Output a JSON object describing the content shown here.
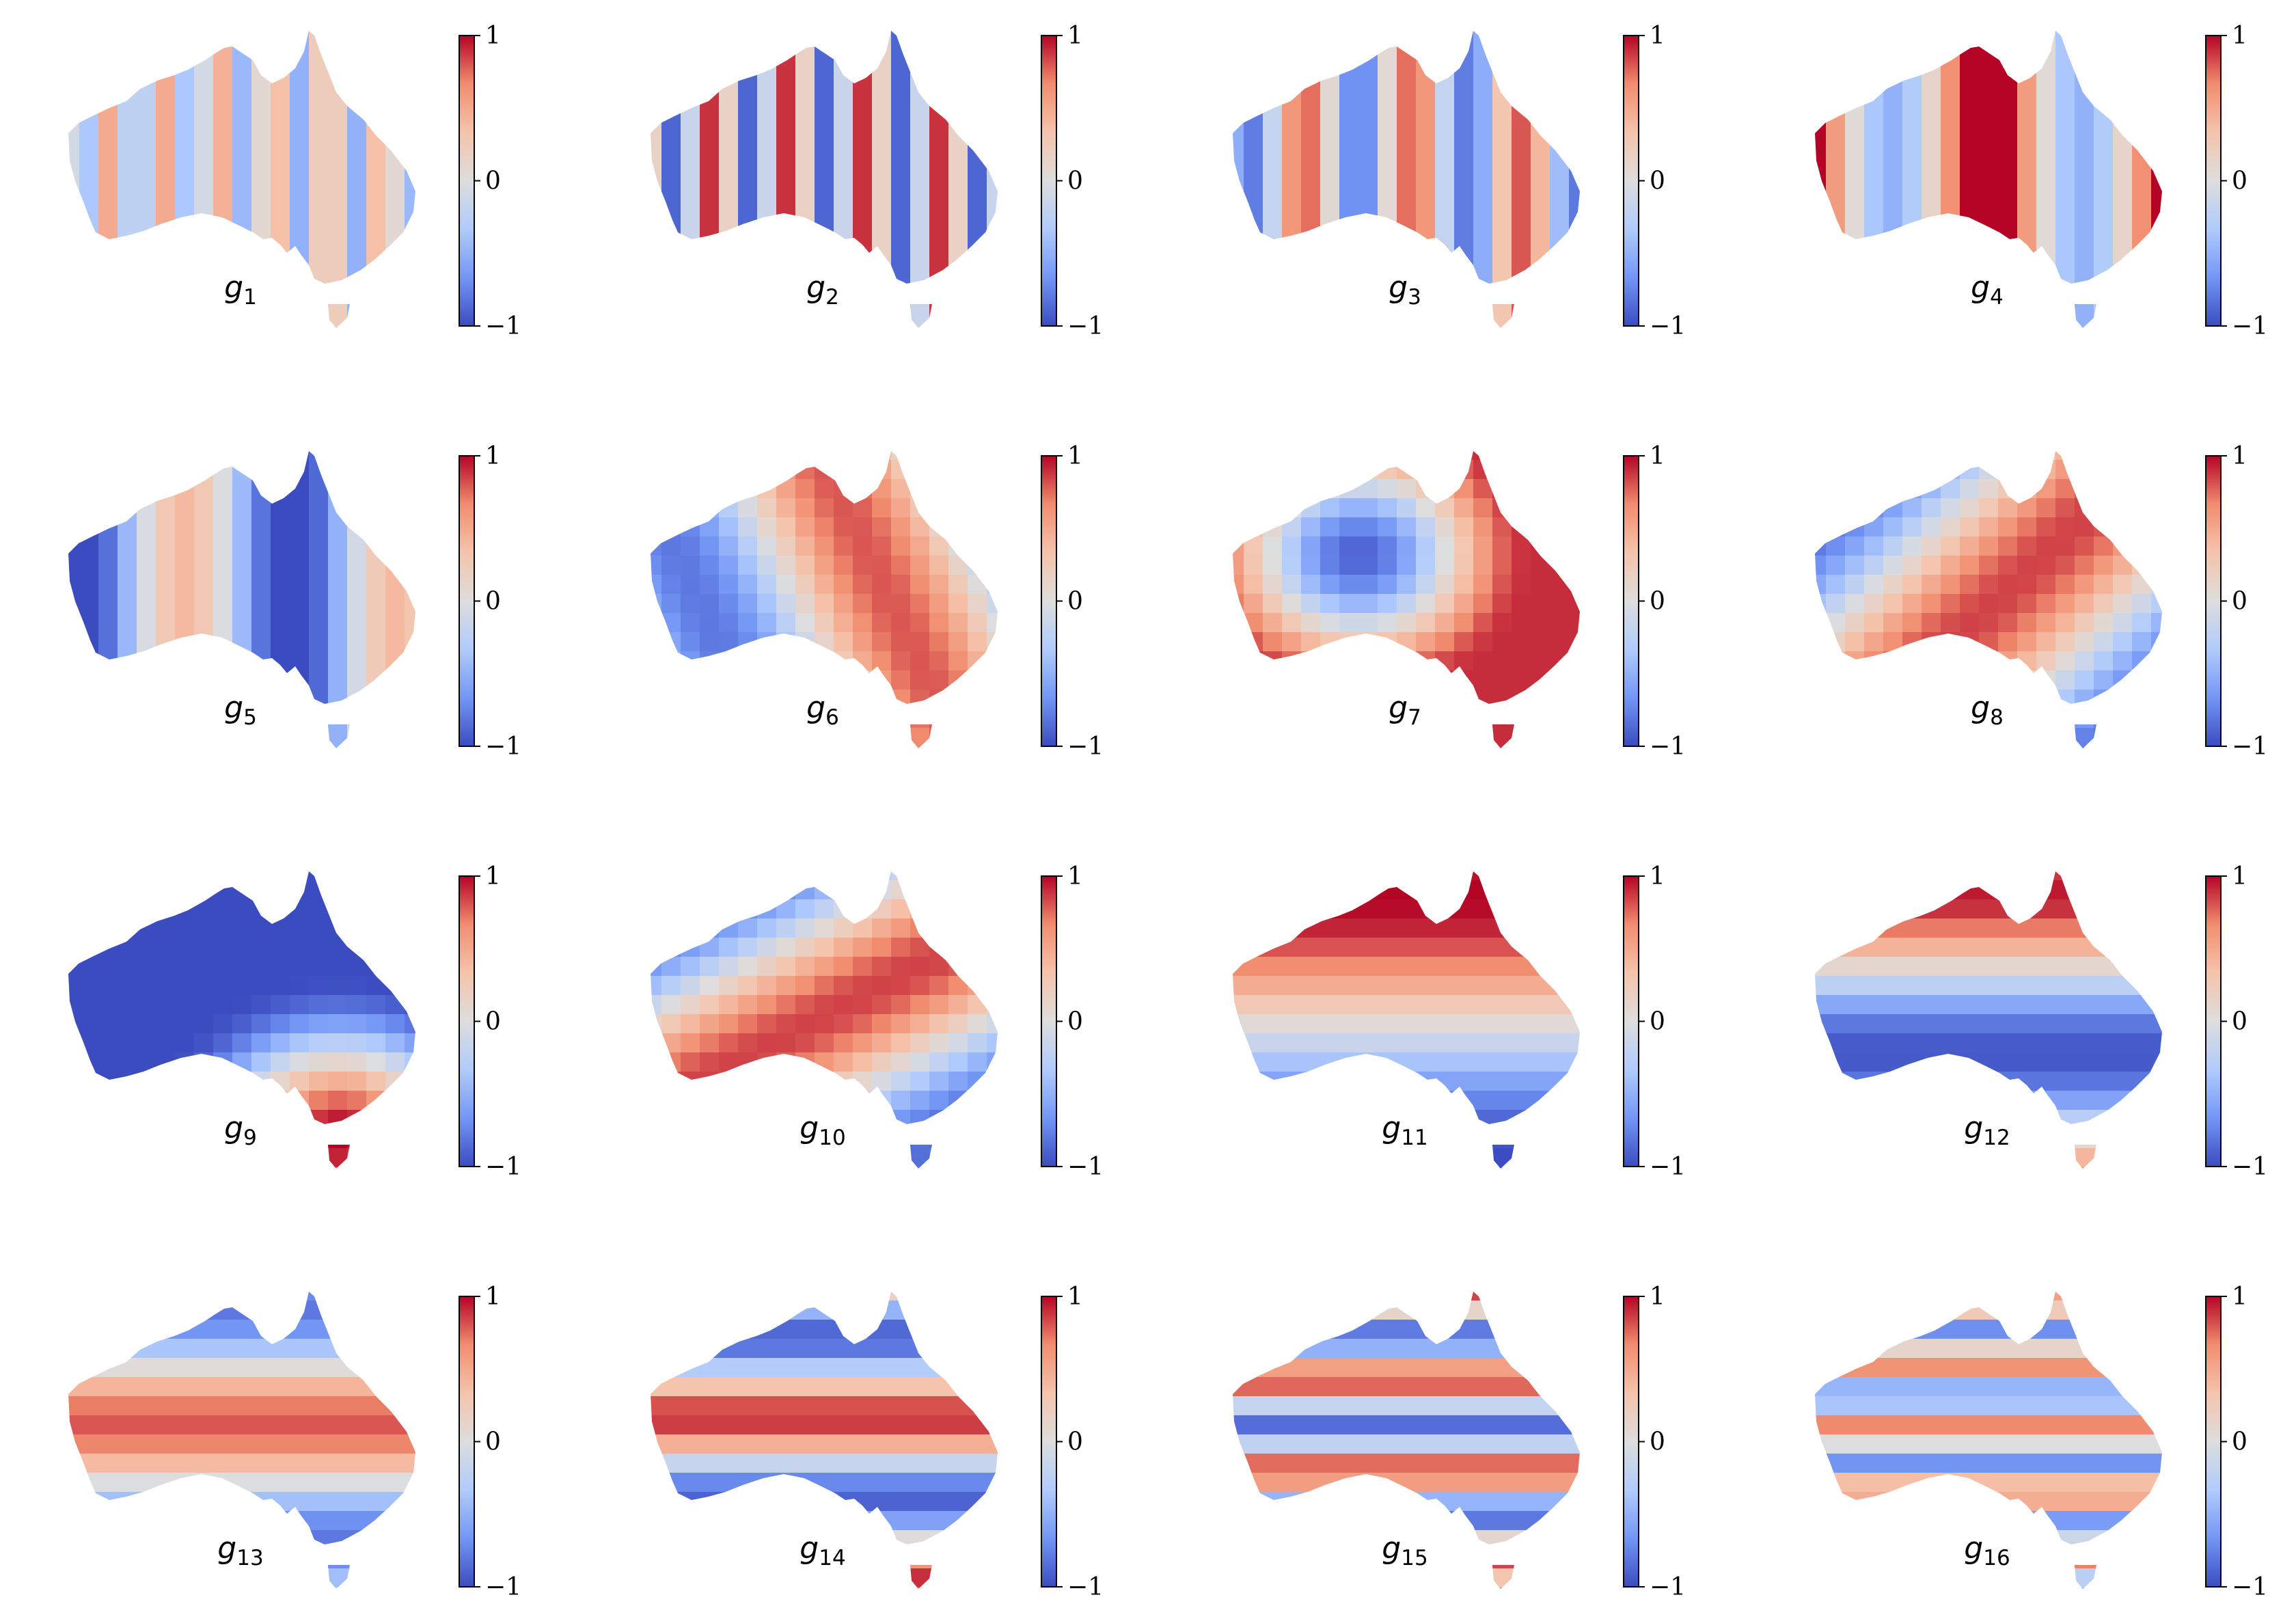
{
  "figure": {
    "colormap": "coolwarm",
    "colormap_stops": [
      "#3b4cc0",
      "#7396f5",
      "#b0cbfc",
      "#dddddd",
      "#f5c4ac",
      "#f18d6f",
      "#b40426"
    ],
    "colorbar_ticks": [
      "1",
      "0",
      "−1"
    ],
    "colorbar_range": [
      -1,
      1
    ]
  },
  "chart_data": [
    {
      "type": "heatmap",
      "label": "g",
      "index": "1",
      "ylim": [
        -1,
        1
      ],
      "pattern": "vertical-bands",
      "frequency": 7.0,
      "amplitude": 0.5,
      "phase": 0.0
    },
    {
      "type": "heatmap",
      "label": "g",
      "index": "2",
      "ylim": [
        -1,
        1
      ],
      "pattern": "vertical-bands",
      "frequency": 5.0,
      "amplitude": 0.9,
      "phase": 0.6
    },
    {
      "type": "heatmap",
      "label": "g",
      "index": "3",
      "ylim": [
        -1,
        1
      ],
      "pattern": "vertical-bands",
      "frequency": 3.5,
      "amplitude": 0.8,
      "phase": 2.2
    },
    {
      "type": "heatmap",
      "label": "g",
      "index": "4",
      "ylim": [
        -1,
        1
      ],
      "pattern": "vertical-bands",
      "frequency": 2.0,
      "amplitude": 0.85,
      "phase": 1.3,
      "offset": 0.35
    },
    {
      "type": "heatmap",
      "label": "g",
      "index": "5",
      "ylim": [
        -1,
        1
      ],
      "pattern": "vertical-bands",
      "frequency": 1.8,
      "amplitude": 0.75,
      "phase": 3.6,
      "offset": -0.35
    },
    {
      "type": "heatmap",
      "label": "g",
      "index": "6",
      "ylim": [
        -1,
        1
      ],
      "pattern": "diagonal",
      "frequency": 1.0,
      "amplitude": 0.8,
      "phase": 4.7,
      "tilt": -0.4
    },
    {
      "type": "heatmap",
      "label": "g",
      "index": "7",
      "ylim": [
        -1,
        1
      ],
      "pattern": "radial",
      "center": [
        0.4,
        0.35
      ],
      "amplitude": 0.9,
      "scale": 2.2
    },
    {
      "type": "heatmap",
      "label": "g",
      "index": "8",
      "ylim": [
        -1,
        1
      ],
      "pattern": "diagonal",
      "frequency": 0.7,
      "amplitude": 0.85,
      "phase": 3.5,
      "tilt": 0.9
    },
    {
      "type": "heatmap",
      "label": "g",
      "index": "9",
      "ylim": [
        -1,
        1
      ],
      "pattern": "radial",
      "center": [
        0.78,
        0.85
      ],
      "amplitude": 1.0,
      "scale": 2.0,
      "invert": true
    },
    {
      "type": "heatmap",
      "label": "g",
      "index": "10",
      "ylim": [
        -1,
        1
      ],
      "pattern": "diagonal",
      "frequency": 0.55,
      "amplitude": 0.85,
      "phase": 3.4,
      "tilt": 1.6
    },
    {
      "type": "heatmap",
      "label": "g",
      "index": "11",
      "ylim": [
        -1,
        1
      ],
      "pattern": "horizontal-bands",
      "frequency": 0.6,
      "amplitude": 1.0,
      "phase": 1.2
    },
    {
      "type": "heatmap",
      "label": "g",
      "index": "12",
      "ylim": [
        -1,
        1
      ],
      "pattern": "horizontal-bands",
      "frequency": 1.0,
      "amplitude": 0.95,
      "phase": 1.0
    },
    {
      "type": "heatmap",
      "label": "g",
      "index": "13",
      "ylim": [
        -1,
        1
      ],
      "pattern": "horizontal-bands",
      "frequency": 1.4,
      "amplitude": 0.8,
      "phase": 4.0
    },
    {
      "type": "heatmap",
      "label": "g",
      "index": "14",
      "ylim": [
        -1,
        1
      ],
      "pattern": "horizontal-bands",
      "frequency": 2.0,
      "amplitude": 0.9,
      "phase": 2.6
    },
    {
      "type": "heatmap",
      "label": "g",
      "index": "15",
      "ylim": [
        -1,
        1
      ],
      "pattern": "horizontal-bands",
      "frequency": 3.6,
      "amplitude": 0.85,
      "phase": 1.0
    },
    {
      "type": "heatmap",
      "label": "g",
      "index": "16",
      "ylim": [
        -1,
        1
      ],
      "pattern": "horizontal-bands",
      "frequency": 5.0,
      "amplitude": 0.7,
      "phase": 0.0
    }
  ]
}
